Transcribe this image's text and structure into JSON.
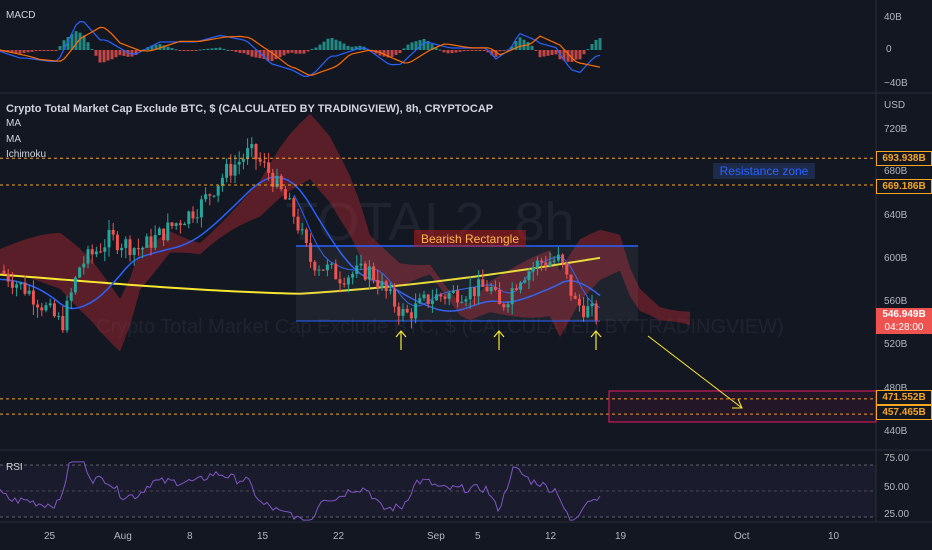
{
  "chart_data": [
    {
      "type": "line",
      "panel": "MACD",
      "title": "MACD",
      "y_ticks": [
        "40B",
        "0",
        "−40B"
      ],
      "ylim": [
        -45,
        45
      ]
    },
    {
      "type": "candlestick",
      "panel": "price",
      "title": "Crypto Total Market Cap Exclude BTC, $ (CALCULATED BY TRADINGVIEW), 8h, CRYPTOCAP",
      "indicators": [
        "MA",
        "MA",
        "Ichimoku"
      ],
      "watermark": "TOTAL2, 8h",
      "watermark_sub": "Crypto Total Market Cap Exclude BTC, $ (CALCULATED BY TRADINGVIEW)",
      "currency": "USD",
      "y_ticks": [
        "720B",
        "680B",
        "640B",
        "600B",
        "560B",
        "520B",
        "480B",
        "440B"
      ],
      "ylim": [
        428,
        740
      ],
      "last_price": "546.949B",
      "countdown": "04:28:00",
      "price_levels": [
        {
          "label": "693.938B",
          "value": 693.938,
          "color": "#f5a623"
        },
        {
          "label": "669.186B",
          "value": 669.186,
          "color": "#f5a623"
        },
        {
          "label": "471.552B",
          "value": 471.552,
          "color": "#f5a623"
        },
        {
          "label": "457.465B",
          "value": 457.465,
          "color": "#f5a623"
        }
      ],
      "annotations": {
        "resistance_zone": "Resistance zone",
        "bearish_rectangle": "Bearish Rectangle"
      }
    },
    {
      "type": "line",
      "panel": "RSI",
      "title": "RSI",
      "y_ticks": [
        "75.00",
        "50.00",
        "25.00"
      ],
      "ylim": [
        20,
        80
      ]
    }
  ],
  "x_axis": [
    "25",
    "Aug",
    "8",
    "15",
    "22",
    "Sep",
    "5",
    "12",
    "19",
    "Oct",
    "10"
  ],
  "colors": {
    "background": "#131722",
    "up": "#26a69a",
    "down": "#ef5350",
    "ma_yellow": "#f7e733",
    "ma_blue": "#2962ff",
    "level": "#f5a623",
    "target_zone": "#e91e63",
    "rectangle": "#2962ff"
  }
}
